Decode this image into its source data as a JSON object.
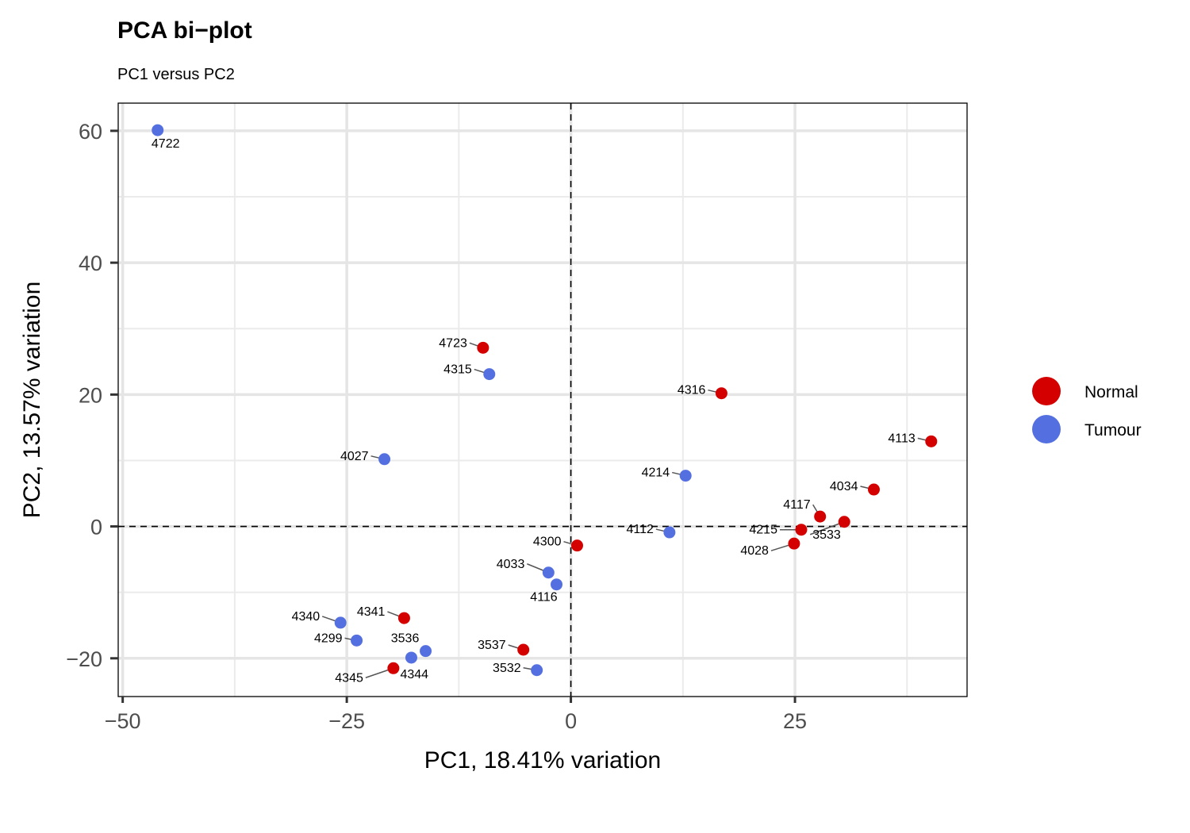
{
  "chart_data": {
    "type": "scatter",
    "title": "PCA bi−plot",
    "subtitle": "PC1 versus PC2",
    "xlabel": "PC1, 18.41% variation",
    "ylabel": "PC2, 13.57% variation",
    "xlim": [
      -50.5,
      44.2
    ],
    "ylim": [
      -25.8,
      64.2
    ],
    "x_ticks": [
      -50,
      -25,
      0,
      25
    ],
    "x_tick_labels": [
      "−50",
      "−25",
      "0",
      "25"
    ],
    "y_ticks": [
      60,
      40,
      20,
      0,
      -20
    ],
    "y_tick_labels": [
      "60",
      "40",
      "20",
      "0",
      "−20"
    ],
    "x_minor_gridlines": [
      -37.5,
      -12.5,
      12.5,
      37.5
    ],
    "y_minor_gridlines": [
      50,
      30,
      10,
      -10
    ],
    "reference_lines": {
      "x": 0,
      "y": 0,
      "style": "dashed"
    },
    "grid": true,
    "legend_position": "right",
    "colors": {
      "Normal": "#d40000",
      "Tumour": "#5470e0"
    },
    "series": [
      {
        "name": "Normal",
        "points": [
          {
            "label": "4723",
            "x": -9.8,
            "y": 27.1
          },
          {
            "label": "4316",
            "x": 16.8,
            "y": 20.2
          },
          {
            "label": "4113",
            "x": 40.2,
            "y": 12.9
          },
          {
            "label": "4034",
            "x": 33.8,
            "y": 5.6
          },
          {
            "label": "4117",
            "x": 27.8,
            "y": 1.5
          },
          {
            "label": "3533",
            "x": 30.5,
            "y": 0.7
          },
          {
            "label": "4215",
            "x": 25.7,
            "y": -0.5
          },
          {
            "label": "4028",
            "x": 24.9,
            "y": -2.6
          },
          {
            "label": "4300",
            "x": 0.7,
            "y": -2.9
          },
          {
            "label": "4341",
            "x": -18.6,
            "y": -13.9
          },
          {
            "label": "3537",
            "x": -5.3,
            "y": -18.7
          },
          {
            "label": "4345",
            "x": -19.8,
            "y": -21.5
          }
        ]
      },
      {
        "name": "Tumour",
        "points": [
          {
            "label": "4722",
            "x": -46.1,
            "y": 60.1
          },
          {
            "label": "4315",
            "x": -9.1,
            "y": 23.1
          },
          {
            "label": "4027",
            "x": -20.8,
            "y": 10.2
          },
          {
            "label": "4214",
            "x": 12.8,
            "y": 7.7
          },
          {
            "label": "4112",
            "x": 11.0,
            "y": -0.9
          },
          {
            "label": "4033",
            "x": -2.5,
            "y": -7.0
          },
          {
            "label": "4116",
            "x": -1.6,
            "y": -8.8
          },
          {
            "label": "4340",
            "x": -25.7,
            "y": -14.6
          },
          {
            "label": "4299",
            "x": -23.9,
            "y": -17.3
          },
          {
            "label": "3536",
            "x": -16.2,
            "y": -18.9
          },
          {
            "label": "4344",
            "x": -17.8,
            "y": -19.9
          },
          {
            "label": "3532",
            "x": -3.8,
            "y": -21.8
          }
        ]
      }
    ]
  }
}
